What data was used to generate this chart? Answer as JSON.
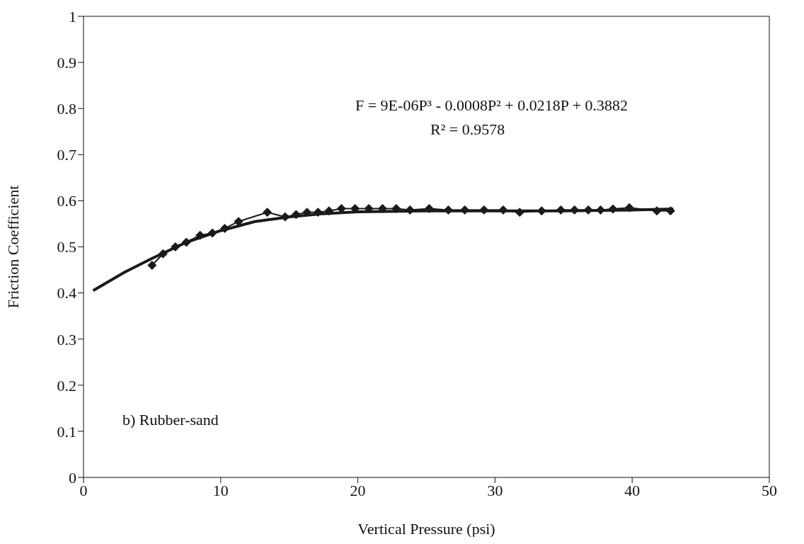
{
  "chart_data": {
    "type": "line",
    "xlabel": "Vertical Pressure (psi)",
    "ylabel": "Friction Coefficient",
    "xlim": [
      0,
      50
    ],
    "xticks": [
      0,
      10,
      20,
      30,
      40,
      50
    ],
    "ylim": [
      0,
      1
    ],
    "yticks": [
      0,
      0.1,
      0.2,
      0.3,
      0.4,
      0.5,
      0.6,
      0.7,
      0.8,
      0.9,
      1
    ],
    "grid": false,
    "legend": false,
    "marker": "diamond",
    "line_style": "solid",
    "annotations": [
      "F = 9E-06P³ - 0.0008P² + 0.0218P + 0.3882",
      "R² = 0.9578",
      "b) Rubber-sand"
    ],
    "series": [
      {
        "color": "#1a1a1a",
        "x": [
          5,
          5.8,
          6.7,
          7.5,
          8.5,
          9.4,
          10.3,
          11.3,
          13.4,
          14.7,
          15.5,
          16.3,
          17.1,
          17.9,
          18.8,
          19.8,
          20.8,
          21.8,
          22.8,
          23.8,
          25.2,
          26.6,
          27.8,
          29.2,
          30.6,
          31.8,
          33.4,
          34.8,
          35.8,
          36.8,
          37.7,
          38.6,
          39.8,
          41.8,
          42.8
        ],
        "values": [
          0.46,
          0.485,
          0.5,
          0.51,
          0.525,
          0.53,
          0.54,
          0.555,
          0.575,
          0.565,
          0.57,
          0.575,
          0.575,
          0.578,
          0.583,
          0.583,
          0.583,
          0.583,
          0.583,
          0.58,
          0.583,
          0.58,
          0.58,
          0.58,
          0.58,
          0.575,
          0.578,
          0.58,
          0.58,
          0.58,
          0.58,
          0.582,
          0.585,
          0.578,
          0.578
        ]
      },
      {
        "type": "line",
        "marker": "none",
        "color": "#1a1a1a",
        "x": [
          0.7,
          3,
          5,
          7.5,
          10,
          12.5,
          15,
          17.5,
          20,
          25,
          30,
          35,
          40,
          43
        ],
        "values": [
          0.405,
          0.445,
          0.475,
          0.51,
          0.535,
          0.555,
          0.565,
          0.572,
          0.576,
          0.578,
          0.578,
          0.578,
          0.58,
          0.582
        ]
      }
    ]
  }
}
